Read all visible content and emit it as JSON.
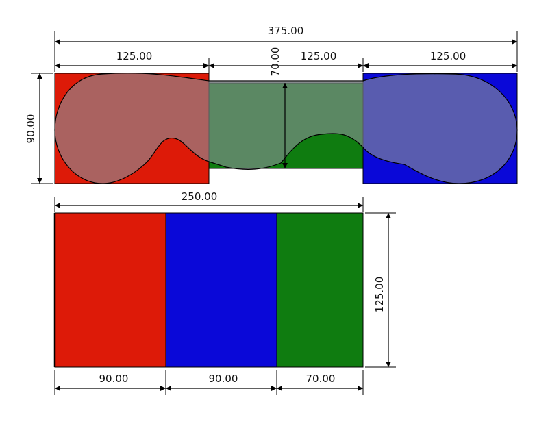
{
  "colors": {
    "red": "#dd1a08",
    "green": "#0f7c10",
    "blue": "#0a08d8",
    "blob_fill": "#8a8f96",
    "line": "#000000",
    "background": "#ffffff"
  },
  "top_diagram": {
    "overall_width_label": "375.00",
    "segment_labels": [
      "125.00",
      "125.00",
      "125.00"
    ],
    "left_height_label": "90.00",
    "middle_height_label": "70.00",
    "blocks": [
      {
        "color_name": "red",
        "width": 125,
        "height": 90
      },
      {
        "color_name": "green",
        "width": 125,
        "height": 70
      },
      {
        "color_name": "blue",
        "width": 125,
        "height": 90
      }
    ]
  },
  "bottom_diagram": {
    "overall_width_label": "250.00",
    "height_label": "125.00",
    "segment_labels": [
      "90.00",
      "90.00",
      "70.00"
    ],
    "blocks": [
      {
        "color_name": "red",
        "width": 90,
        "height": 125
      },
      {
        "color_name": "blue",
        "width": 90,
        "height": 125
      },
      {
        "color_name": "green",
        "width": 70,
        "height": 125
      }
    ]
  }
}
